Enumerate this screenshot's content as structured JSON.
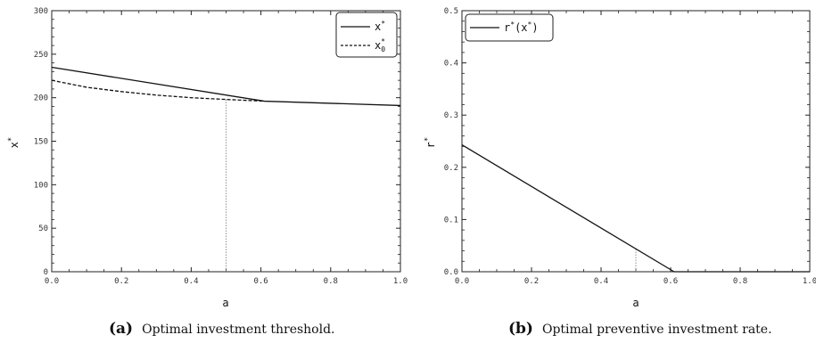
{
  "chart_data": [
    {
      "type": "line",
      "panel_label": "(a)",
      "caption": "Optimal investment threshold.",
      "xlabel": "a",
      "ylabel": "x*",
      "xlim": [
        0,
        1.0
      ],
      "ylim": [
        0,
        300
      ],
      "xticks": [
        "0.0",
        "0.2",
        "0.4",
        "0.6",
        "0.8",
        "1.0"
      ],
      "yticks": [
        "0",
        "50",
        "100",
        "150",
        "200",
        "250",
        "300"
      ],
      "legend_position": "top-right",
      "series": [
        {
          "name": "x*",
          "style": "solid",
          "x": [
            0.0,
            0.61,
            1.0
          ],
          "y": [
            235,
            196,
            191
          ]
        },
        {
          "name": "x0*",
          "style": "dashed",
          "x": [
            0.0,
            0.1,
            0.2,
            0.3,
            0.4,
            0.5,
            0.61
          ],
          "y": [
            220,
            212,
            207,
            203,
            200,
            198,
            196
          ]
        }
      ],
      "vline": {
        "x": 0.5,
        "y": 198,
        "style": "dotted"
      }
    },
    {
      "type": "line",
      "panel_label": "(b)",
      "caption": "Optimal preventive investment rate.",
      "xlabel": "a",
      "ylabel": "r*",
      "xlim": [
        0,
        1.0
      ],
      "ylim": [
        0,
        0.5
      ],
      "xticks": [
        "0.0",
        "0.2",
        "0.4",
        "0.6",
        "0.8",
        "1.0"
      ],
      "yticks": [
        "0.0",
        "0.1",
        "0.2",
        "0.3",
        "0.4",
        "0.5"
      ],
      "legend_position": "top-left",
      "series": [
        {
          "name": "r*(x*)",
          "style": "solid",
          "x": [
            0.0,
            0.61,
            1.0
          ],
          "y": [
            0.243,
            0.0,
            0.0
          ]
        }
      ],
      "vline": {
        "x": 0.5,
        "y": 0.044,
        "style": "dotted"
      }
    }
  ]
}
